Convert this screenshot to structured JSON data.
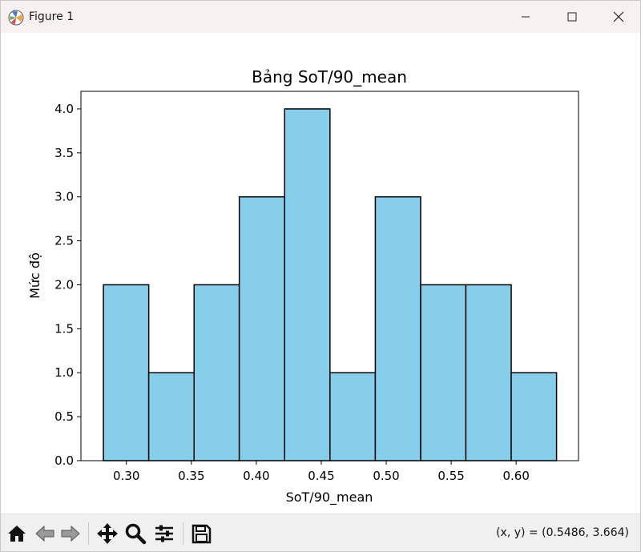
{
  "window": {
    "title": "Figure 1"
  },
  "toolbar": {
    "tools": [
      "home-icon",
      "back-icon",
      "forward-icon",
      "pan-icon",
      "zoom-icon",
      "configure-subplots-icon",
      "save-icon"
    ],
    "coords": "(x, y) = (0.5486, 3.664)"
  },
  "chart_data": {
    "type": "bar",
    "title": "Bảng SoT/90_mean",
    "xlabel": "SoT/90_mean",
    "ylabel": "Mức độ",
    "bar_color": "#87ceeb",
    "edge_color": "#000000",
    "bin_edges": [
      0.2823,
      0.3172,
      0.3521,
      0.3869,
      0.4218,
      0.4567,
      0.4916,
      0.5265,
      0.5613,
      0.5962,
      0.6311
    ],
    "values": [
      2,
      1,
      2,
      3,
      4,
      1,
      3,
      2,
      2,
      1
    ],
    "xlim": [
      0.265,
      0.648
    ],
    "ylim": [
      0,
      4.2
    ],
    "xticks": [
      0.3,
      0.35,
      0.4,
      0.45,
      0.5,
      0.55,
      0.6
    ],
    "xtick_labels": [
      "0.30",
      "0.35",
      "0.40",
      "0.45",
      "0.50",
      "0.55",
      "0.60"
    ],
    "yticks": [
      0.0,
      0.5,
      1.0,
      1.5,
      2.0,
      2.5,
      3.0,
      3.5,
      4.0
    ],
    "ytick_labels": [
      "0.0",
      "0.5",
      "1.0",
      "1.5",
      "2.0",
      "2.5",
      "3.0",
      "3.5",
      "4.0"
    ],
    "grid": false
  }
}
